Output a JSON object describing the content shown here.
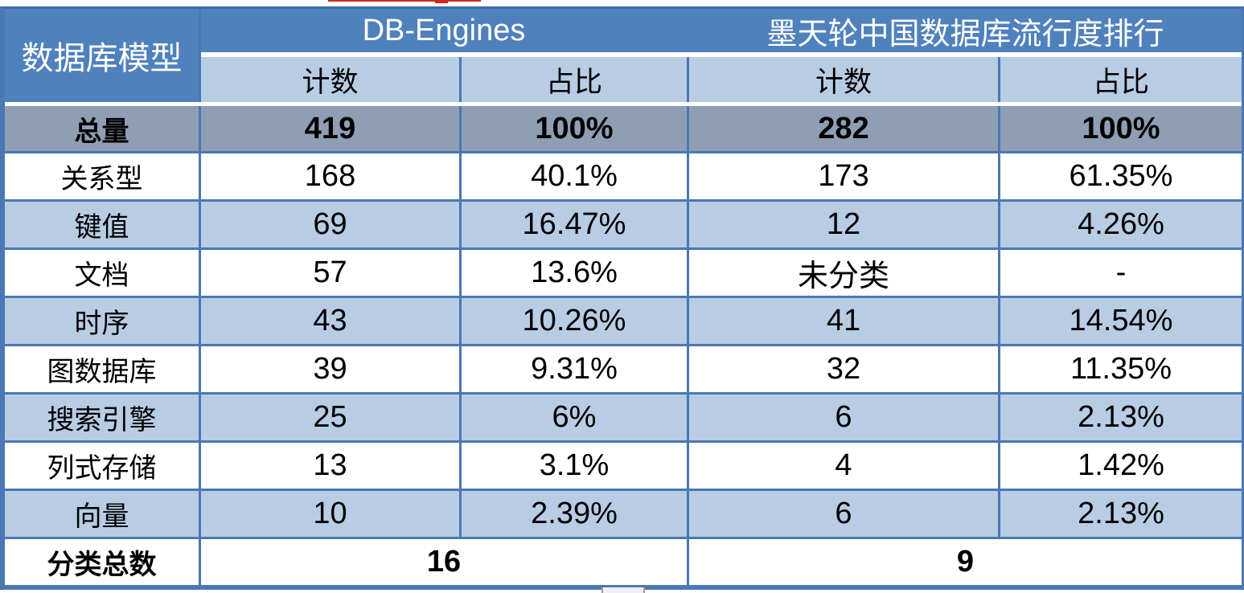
{
  "colors": {
    "header_blue": "#4f81bd",
    "subheader_light_blue": "#b8cce4",
    "total_row_gray": "#8f9eb4",
    "grid_border_blue": "#4a78b4",
    "alt_row_blue": "#b8cce4",
    "annotation_red": "#cf2821",
    "header_text": "#ffffff",
    "body_text": "#000000"
  },
  "chart_data": {
    "type": "table",
    "corner_header": "数据库模型",
    "groups": [
      {
        "label": "DB-Engines",
        "colspan": 2
      },
      {
        "label": "墨天轮中国数据库流行度排行",
        "colspan": 2
      }
    ],
    "sub_headers": [
      "计数",
      "占比",
      "计数",
      "占比"
    ],
    "total_row": {
      "label": "总量",
      "values": [
        "419",
        "100%",
        "282",
        "100%"
      ]
    },
    "rows": [
      {
        "label": "关系型",
        "values": [
          "168",
          "40.1%",
          "173",
          "61.35%"
        ]
      },
      {
        "label": "键值",
        "values": [
          "69",
          "16.47%",
          "12",
          "4.26%"
        ]
      },
      {
        "label": "文档",
        "values": [
          "57",
          "13.6%",
          "未分类",
          "-"
        ]
      },
      {
        "label": "时序",
        "values": [
          "43",
          "10.26%",
          "41",
          "14.54%"
        ]
      },
      {
        "label": "图数据库",
        "values": [
          "39",
          "9.31%",
          "32",
          "11.35%"
        ]
      },
      {
        "label": "搜索引擎",
        "values": [
          "25",
          "6%",
          "6",
          "2.13%"
        ]
      },
      {
        "label": "列式存储",
        "values": [
          "13",
          "3.1%",
          "4",
          "1.42%"
        ]
      },
      {
        "label": "向量",
        "values": [
          "10",
          "2.39%",
          "6",
          "2.13%"
        ]
      }
    ],
    "footer_row": {
      "label": "分类总数",
      "merged_values": [
        "16",
        "9"
      ]
    }
  }
}
